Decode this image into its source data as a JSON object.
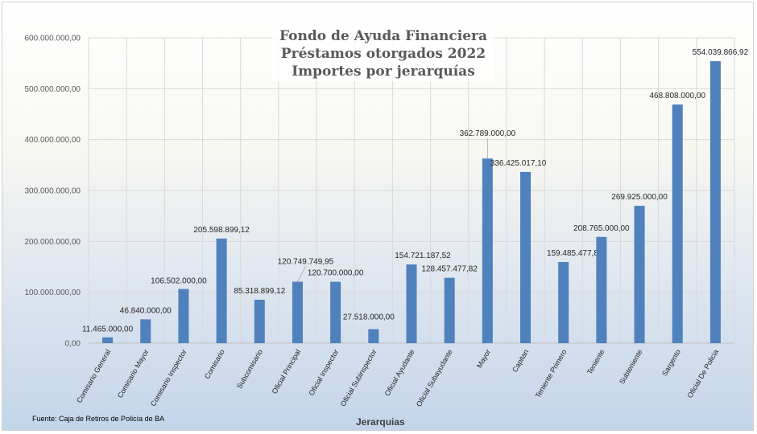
{
  "chart_data": {
    "type": "bar",
    "title_lines": [
      "Fondo de Ayuda Financiera",
      "Préstamos otorgados 2022",
      "Importes por jerarquías"
    ],
    "xlabel": "Jerarquias",
    "ylabel": "",
    "source_note": "Fuente: Caja de Retiros de Policía de BA",
    "ylim": [
      0,
      600000000
    ],
    "y_ticks": [
      0,
      100000000,
      200000000,
      300000000,
      400000000,
      500000000,
      600000000
    ],
    "y_tick_labels": [
      "0,00",
      "100.000.000,00",
      "200.000.000,00",
      "300.000.000,00",
      "400.000.000,00",
      "500.000.000,00",
      "600.000.000,00"
    ],
    "grid": true,
    "bar_color": "#4f81bd",
    "categories": [
      "Comisario General",
      "Comisario Mayor",
      "Comisario Inspector",
      "Comisario",
      "Subcomisario",
      "Oficial Principal",
      "Oficial Inspector",
      "Oficial Subinspector",
      "Oficial Ayudante",
      "Oficial Subayudante",
      "Mayor",
      "Capitan",
      "Teniente Primero",
      "Teniente",
      "Subteniente",
      "Sargento",
      "Oficial De Policia"
    ],
    "values": [
      11465000.0,
      46840000.0,
      106502000.0,
      205598899.12,
      85318899.12,
      120749749.95,
      120700000.0,
      27518000.0,
      154721187.52,
      128457477.82,
      362789000.0,
      336425017.1,
      159485477.82,
      208765000.0,
      269925000.0,
      468808000.0,
      554039866.92
    ],
    "value_labels": [
      "11.465.000,00",
      "46.840.000,00",
      "106.502.000,00",
      "205.598.899,12",
      "85.318.899,12",
      "120.749.749,95",
      "120.700.000,00",
      "27.518.000,00",
      "154.721.187,52",
      "128.457.477,82",
      "362.789.000,00",
      "336.425.017,10",
      "159.485.477,82",
      "208.765.000,00",
      "269.925.000,00",
      "468.808.000,00",
      "554.039.866,92"
    ]
  }
}
